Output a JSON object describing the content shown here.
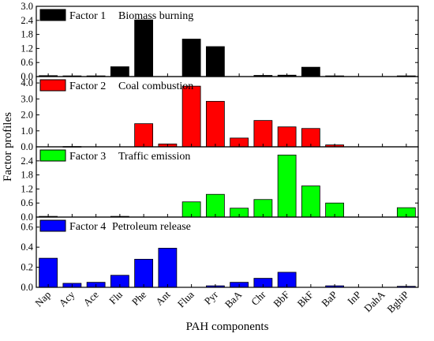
{
  "chart_data": {
    "type": "bar",
    "ylabel": "Factor profiles",
    "xlabel": "PAH components",
    "categories": [
      "Nap",
      "Acy",
      "Ace",
      "Flu",
      "Phe",
      "Ant",
      "Flua",
      "Pyr",
      "BaA",
      "Chr",
      "BbF",
      "BkF",
      "BaP",
      "InP",
      "DahA",
      "BghiP"
    ],
    "panels": [
      {
        "legend_label": "Factor 1",
        "legend_desc": "Biomass burning",
        "color": "#000000",
        "ylim": [
          0,
          3.0
        ],
        "yticks": [
          "0.0",
          "0.6",
          "1.2",
          "1.8",
          "2.4",
          "3.0"
        ],
        "ytick_values": [
          0,
          0.6,
          1.2,
          1.8,
          2.4,
          3.0
        ],
        "values": [
          0.04,
          0.03,
          0.03,
          0.42,
          2.42,
          0,
          1.6,
          1.28,
          0,
          0.05,
          0.06,
          0.4,
          0.03,
          0,
          0,
          0.03
        ]
      },
      {
        "legend_label": "Factor 2",
        "legend_desc": "Coal combustion",
        "color": "#ff0000",
        "ylim": [
          0,
          4.4
        ],
        "yticks": [
          "0.0",
          "1.0",
          "2.0",
          "3.0",
          "4.0"
        ],
        "ytick_values": [
          0,
          1,
          2,
          3,
          4
        ],
        "values": [
          0,
          0.02,
          0,
          0,
          1.45,
          0.18,
          3.8,
          2.85,
          0.55,
          1.65,
          1.25,
          1.15,
          0.12,
          0,
          0,
          0
        ]
      },
      {
        "legend_label": "Factor 3",
        "legend_desc": "Traffic emission",
        "color": "#00ff00",
        "ylim": [
          0,
          3.0
        ],
        "yticks": [
          "0.0",
          "0.6",
          "1.2",
          "1.8",
          "2.4"
        ],
        "ytick_values": [
          0,
          0.6,
          1.2,
          1.8,
          2.4
        ],
        "values": [
          0.03,
          0,
          0,
          0.03,
          0,
          0,
          0.65,
          0.97,
          0.38,
          0.75,
          2.65,
          1.33,
          0.6,
          0,
          0,
          0.4
        ]
      },
      {
        "legend_label": "Factor 4",
        "legend_desc": "Petroleum release",
        "color": "#0000ff",
        "ylim": [
          0,
          0.7
        ],
        "yticks": [
          "0.0",
          "0.2",
          "0.4",
          "0.6"
        ],
        "ytick_values": [
          0,
          0.2,
          0.4,
          0.6
        ],
        "values": [
          0.29,
          0.04,
          0.05,
          0.12,
          0.28,
          0.39,
          0,
          0.015,
          0.05,
          0.09,
          0.15,
          0,
          0.015,
          0,
          0,
          0.01
        ]
      }
    ]
  }
}
